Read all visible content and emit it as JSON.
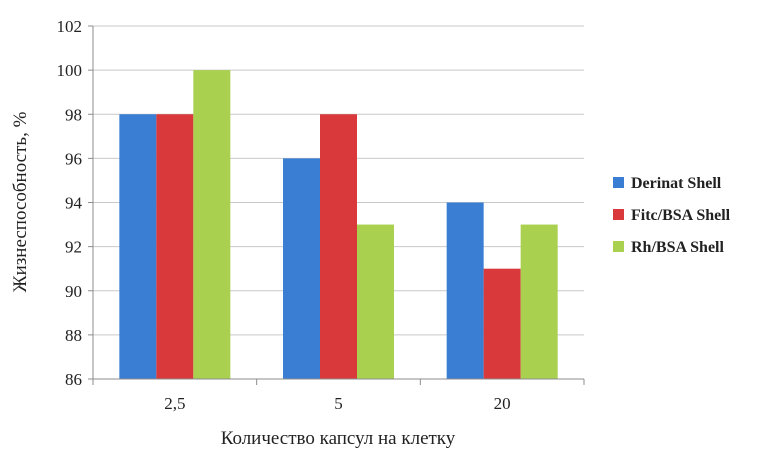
{
  "chart_data": {
    "type": "bar",
    "categories": [
      "2,5",
      "5",
      "20"
    ],
    "series": [
      {
        "name": "Derinat Shell",
        "values": [
          98,
          96,
          94
        ],
        "color": "#3a7ed3"
      },
      {
        "name": "Fitc/BSA Shell",
        "values": [
          98,
          98,
          91
        ],
        "color": "#d9393a"
      },
      {
        "name": "Rh/BSA Shell",
        "values": [
          100,
          93,
          93
        ],
        "color": "#a9d04f"
      }
    ],
    "xlabel": "Количество капсул на клетку",
    "ylabel": "Жизнеспособность, %",
    "ylim": [
      86,
      102
    ],
    "yticks": [
      86,
      88,
      90,
      92,
      94,
      96,
      98,
      100,
      102
    ],
    "grid": true,
    "legend_position": "right"
  }
}
